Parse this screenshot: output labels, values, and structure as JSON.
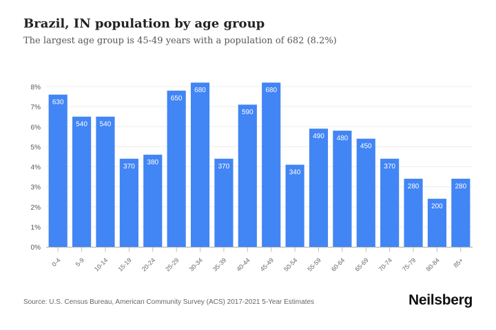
{
  "title": "Brazil, IN population by age group",
  "subtitle": "The largest age group is 45-49 years with a population of 682 (8.2%)",
  "source": "Source: U.S. Census Bureau, American Community Survey (ACS) 2017-2021 5-Year Estimates",
  "logo": "Neilsberg",
  "chart_data": {
    "type": "bar",
    "title": "Brazil, IN population by age group",
    "xlabel": "",
    "ylabel": "",
    "ylim": [
      0,
      8
    ],
    "y_ticks": [
      "0%",
      "1%",
      "2%",
      "3%",
      "4%",
      "5%",
      "6%",
      "7%",
      "8%"
    ],
    "grid": true,
    "bar_color": "#4285f4",
    "categories": [
      "0-4",
      "5-9",
      "10-14",
      "15-19",
      "20-24",
      "25-29",
      "30-34",
      "35-39",
      "40-44",
      "45-49",
      "50-54",
      "55-59",
      "60-64",
      "65-69",
      "70-74",
      "75-79",
      "80-84",
      "85+"
    ],
    "values_percent": [
      7.6,
      6.5,
      6.5,
      4.4,
      4.6,
      7.8,
      8.2,
      4.4,
      7.1,
      8.2,
      4.1,
      5.9,
      5.8,
      5.4,
      4.4,
      3.4,
      2.4,
      3.4
    ],
    "data_labels": [
      "630",
      "540",
      "540",
      "370",
      "380",
      "650",
      "680",
      "370",
      "590",
      "680",
      "340",
      "490",
      "480",
      "450",
      "370",
      "280",
      "200",
      "280"
    ]
  }
}
